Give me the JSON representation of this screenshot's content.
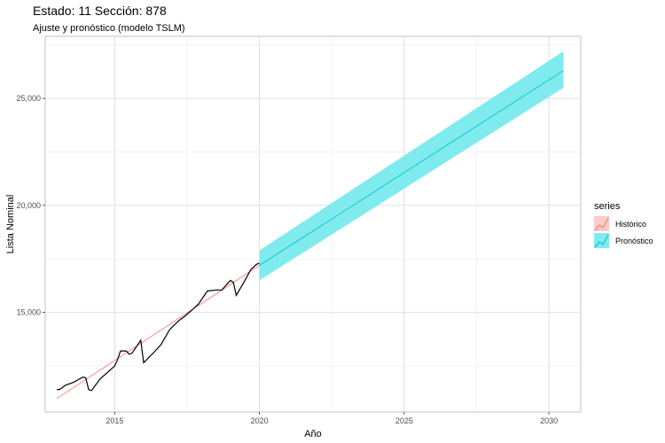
{
  "chart_data": {
    "type": "line",
    "title": "Estado: 11 Sección: 878",
    "subtitle": "Ajuste y pronóstico (modelo TSLM)",
    "xlabel": "Año",
    "ylabel": "Lista Nominal",
    "xlim": [
      2012.6,
      2031.1
    ],
    "ylim": [
      10350,
      27900
    ],
    "x_ticks": [
      2015,
      2020,
      2025,
      2030
    ],
    "x_tick_labels": [
      "2015",
      "2020",
      "2025",
      "2030"
    ],
    "y_ticks": [
      15000,
      20000,
      25000
    ],
    "y_tick_labels": [
      "15,000",
      "20,000",
      "25,000"
    ],
    "grid": true,
    "legend": {
      "title": "series",
      "position": "right",
      "entries": [
        {
          "label": "Histórico",
          "color": "#F8766D"
        },
        {
          "label": "Pronóstico",
          "color": "#00BFC4"
        }
      ]
    },
    "observed": {
      "color": "#000000",
      "points": [
        [
          2013.0,
          11400
        ],
        [
          2013.1,
          11400
        ],
        [
          2013.3,
          11600
        ],
        [
          2013.6,
          11750
        ],
        [
          2013.9,
          11980
        ],
        [
          2014.0,
          11950
        ],
        [
          2014.1,
          11400
        ],
        [
          2014.2,
          11350
        ],
        [
          2014.5,
          11900
        ],
        [
          2015.0,
          12500
        ],
        [
          2015.1,
          12800
        ],
        [
          2015.2,
          13200
        ],
        [
          2015.4,
          13200
        ],
        [
          2015.5,
          13050
        ],
        [
          2015.6,
          13100
        ],
        [
          2015.9,
          13700
        ],
        [
          2016.0,
          12650
        ],
        [
          2016.4,
          13200
        ],
        [
          2016.6,
          13500
        ],
        [
          2016.9,
          14200
        ],
        [
          2017.2,
          14600
        ],
        [
          2017.4,
          14800
        ],
        [
          2017.7,
          15150
        ],
        [
          2017.9,
          15400
        ],
        [
          2018.2,
          16000
        ],
        [
          2018.5,
          16050
        ],
        [
          2018.7,
          16050
        ],
        [
          2018.9,
          16350
        ],
        [
          2019.0,
          16500
        ],
        [
          2019.1,
          16400
        ],
        [
          2019.2,
          15800
        ],
        [
          2019.5,
          16500
        ],
        [
          2019.7,
          17000
        ],
        [
          2019.9,
          17250
        ],
        [
          2020.0,
          17300
        ]
      ]
    },
    "fitted": {
      "color": "#F8766D",
      "start": [
        2013.0,
        10980
      ],
      "end": [
        2020.0,
        17200
      ]
    },
    "forecast": {
      "color": "#00BFC4",
      "band_color": "#7FEBEE",
      "start": {
        "x": 2020.0,
        "mean": 17200,
        "lower": 16500,
        "upper": 17900
      },
      "end": {
        "x": 2030.5,
        "mean": 26300,
        "lower": 25500,
        "upper": 27200
      }
    }
  }
}
